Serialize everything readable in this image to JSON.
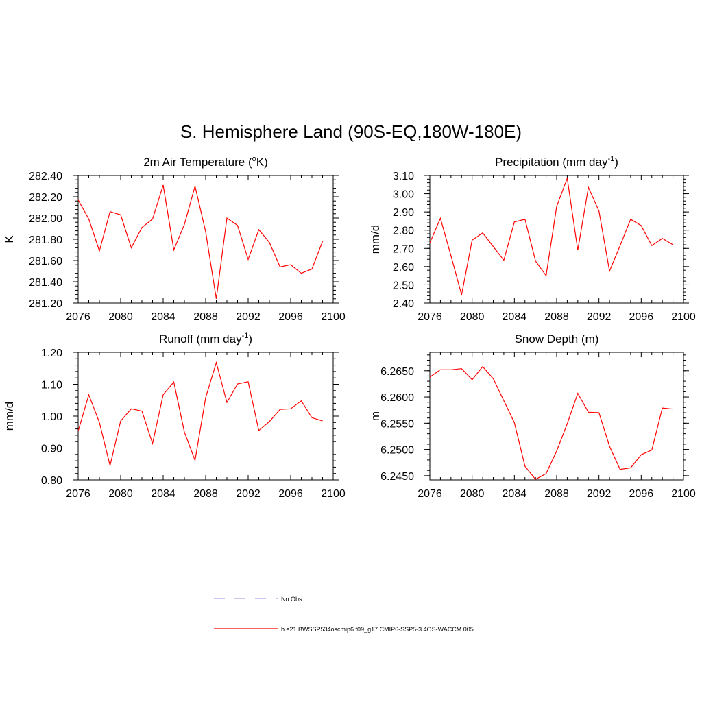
{
  "figure": {
    "title": "S. Hemisphere Land (90S-EQ,180W-180E)"
  },
  "legend": {
    "entries": [
      {
        "label": "No Obs",
        "color": "#a9a9e8",
        "style": "dashed"
      },
      {
        "label": "b.e21.BWSSP534oscmip6.f09_g17.CMIP6-SSP5-3.4OS-WACCM.005",
        "color": "#ff0000",
        "style": "solid"
      }
    ]
  },
  "chart_data": [
    {
      "type": "line",
      "title": "2m Air Temperature (oK)",
      "title_parts": {
        "pre": "2m Air Temperature (",
        "sup": "o",
        "post": "K)"
      },
      "ylabel": "K",
      "xlim": [
        2076,
        2100
      ],
      "ylim": [
        281.2,
        282.4
      ],
      "xticks": [
        "2076",
        "2080",
        "2084",
        "2088",
        "2092",
        "2096",
        "2100"
      ],
      "yticks": [
        "281.20",
        "281.40",
        "281.60",
        "281.80",
        "282.00",
        "282.20",
        "282.40"
      ],
      "series": [
        {
          "color": "#ff0000",
          "x": [
            2076,
            2077,
            2078,
            2079,
            2080,
            2081,
            2082,
            2083,
            2084,
            2085,
            2086,
            2087,
            2088,
            2089,
            2090,
            2091,
            2092,
            2093,
            2094,
            2095,
            2096,
            2097,
            2098,
            2099
          ],
          "values": [
            282.17,
            281.99,
            281.69,
            282.06,
            282.03,
            281.72,
            281.91,
            281.99,
            282.31,
            281.7,
            281.94,
            282.3,
            281.87,
            281.24,
            282.0,
            281.93,
            281.61,
            281.89,
            281.77,
            281.54,
            281.56,
            281.48,
            281.52,
            281.78
          ]
        }
      ]
    },
    {
      "type": "line",
      "title": "Precipitation (mm day-1)",
      "title_parts": {
        "pre": "Precipitation (mm day",
        "sup": "-1",
        "post": ")"
      },
      "ylabel": "mm/d",
      "xlim": [
        2076,
        2100
      ],
      "ylim": [
        2.4,
        3.1
      ],
      "xticks": [
        "2076",
        "2080",
        "2084",
        "2088",
        "2092",
        "2096",
        "2100"
      ],
      "yticks": [
        "2.40",
        "2.50",
        "2.60",
        "2.70",
        "2.80",
        "2.90",
        "3.00",
        "3.10"
      ],
      "series": [
        {
          "color": "#ff0000",
          "x": [
            2076,
            2077,
            2078,
            2079,
            2080,
            2081,
            2082,
            2083,
            2084,
            2085,
            2086,
            2087,
            2088,
            2089,
            2090,
            2091,
            2092,
            2093,
            2094,
            2095,
            2096,
            2097,
            2098,
            2099
          ],
          "values": [
            2.73,
            2.865,
            2.66,
            2.445,
            2.745,
            2.785,
            2.71,
            2.635,
            2.845,
            2.86,
            2.63,
            2.55,
            2.93,
            3.085,
            2.69,
            3.035,
            2.905,
            2.575,
            2.715,
            2.86,
            2.825,
            2.715,
            2.755,
            2.72
          ]
        }
      ]
    },
    {
      "type": "line",
      "title": "Runoff (mm day-1)",
      "title_parts": {
        "pre": "Runoff (mm day",
        "sup": "-1",
        "post": ")"
      },
      "ylabel": "mm/d",
      "xlim": [
        2076,
        2100
      ],
      "ylim": [
        0.8,
        1.2
      ],
      "xticks": [
        "2076",
        "2080",
        "2084",
        "2088",
        "2092",
        "2096",
        "2100"
      ],
      "yticks": [
        "0.80",
        "0.90",
        "1.00",
        "1.10",
        "1.20"
      ],
      "series": [
        {
          "color": "#ff0000",
          "x": [
            2076,
            2077,
            2078,
            2079,
            2080,
            2081,
            2082,
            2083,
            2084,
            2085,
            2086,
            2087,
            2088,
            2089,
            2090,
            2091,
            2092,
            2093,
            2094,
            2095,
            2096,
            2097,
            2098,
            2099
          ],
          "values": [
            0.953,
            1.067,
            0.98,
            0.845,
            0.985,
            1.023,
            1.016,
            0.914,
            1.067,
            1.107,
            0.95,
            0.861,
            1.058,
            1.168,
            1.043,
            1.101,
            1.108,
            0.955,
            0.983,
            1.021,
            1.023,
            1.048,
            0.995,
            0.985
          ]
        }
      ]
    },
    {
      "type": "line",
      "title": "Snow Depth (m)",
      "title_parts": {
        "pre": "Snow Depth (m)",
        "sup": "",
        "post": ""
      },
      "ylabel": "m",
      "xlim": [
        2076,
        2100
      ],
      "ylim": [
        6.2442,
        6.2685
      ],
      "xticks": [
        "2076",
        "2080",
        "2084",
        "2088",
        "2092",
        "2096",
        "2100"
      ],
      "yticks": [
        "6.2450",
        "6.2500",
        "6.2550",
        "6.2600",
        "6.2650"
      ],
      "ytick_values": [
        6.245,
        6.25,
        6.255,
        6.26,
        6.265
      ],
      "series": [
        {
          "color": "#ff0000",
          "x": [
            2076,
            2077,
            2078,
            2079,
            2080,
            2081,
            2082,
            2083,
            2084,
            2085,
            2086,
            2087,
            2088,
            2089,
            2090,
            2091,
            2092,
            2093,
            2094,
            2095,
            2096,
            2097,
            2098,
            2099
          ],
          "values": [
            6.2638,
            6.2652,
            6.2652,
            6.2654,
            6.2633,
            6.2658,
            6.2635,
            6.2593,
            6.2551,
            6.2468,
            6.2443,
            6.2454,
            6.2497,
            6.2549,
            6.2607,
            6.2571,
            6.257,
            6.2506,
            6.2462,
            6.2465,
            6.249,
            6.2499,
            6.2579,
            6.2577
          ]
        }
      ]
    }
  ]
}
